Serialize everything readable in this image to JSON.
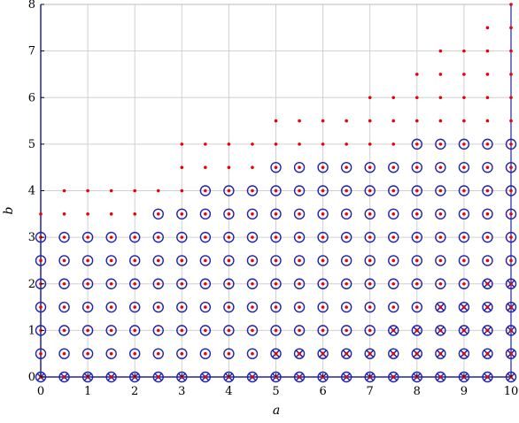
{
  "chart_data": {
    "type": "scatter",
    "title": "",
    "xlabel": "a",
    "ylabel": "b",
    "xlim": [
      0,
      10
    ],
    "ylim": [
      0,
      8
    ],
    "x_ticks": [
      "0",
      "1",
      "2",
      "3",
      "4",
      "5",
      "6",
      "7",
      "8",
      "9",
      "10"
    ],
    "y_ticks": [
      "0",
      "1",
      "2",
      "3",
      "4",
      "5",
      "6",
      "7",
      "8"
    ],
    "grid": true,
    "legend": "none",
    "colors": {
      "dot": "#e8000b",
      "circle": "#2222aa",
      "cross": "#2222aa",
      "grid": "#d0d0d0",
      "axis": "#2222aa"
    },
    "series": [
      {
        "marker": "dot",
        "note_shape": "small red dot",
        "y_max_by_x": [
          [
            0,
            3.5
          ],
          [
            0.5,
            4
          ],
          [
            1,
            4
          ],
          [
            1.5,
            4
          ],
          [
            2,
            4
          ],
          [
            2.5,
            4
          ],
          [
            3,
            5
          ],
          [
            3.5,
            5
          ],
          [
            4,
            5
          ],
          [
            4.5,
            5
          ],
          [
            5,
            5.5
          ],
          [
            5.5,
            5.5
          ],
          [
            6,
            5.5
          ],
          [
            6.5,
            5.5
          ],
          [
            7,
            6
          ],
          [
            7.5,
            6
          ],
          [
            8,
            6.5
          ],
          [
            8.5,
            7
          ],
          [
            9,
            7
          ],
          [
            9.5,
            7.5
          ],
          [
            10,
            8
          ]
        ]
      },
      {
        "marker": "circle",
        "note_shape": "open blue circle",
        "y_max_by_x": [
          [
            0,
            3
          ],
          [
            0.5,
            3
          ],
          [
            1,
            3
          ],
          [
            1.5,
            3
          ],
          [
            2,
            3
          ],
          [
            2.5,
            3.5
          ],
          [
            3,
            3.5
          ],
          [
            3.5,
            4
          ],
          [
            4,
            4
          ],
          [
            4.5,
            4
          ],
          [
            5,
            4.5
          ],
          [
            5.5,
            4.5
          ],
          [
            6,
            4.5
          ],
          [
            6.5,
            4.5
          ],
          [
            7,
            4.5
          ],
          [
            7.5,
            4.5
          ],
          [
            8,
            5
          ],
          [
            8.5,
            5
          ],
          [
            9,
            5
          ],
          [
            9.5,
            5
          ],
          [
            10,
            5
          ]
        ]
      },
      {
        "marker": "cross",
        "note_shape": "blue crossed circle",
        "y_max_by_x": [
          [
            0,
            0
          ],
          [
            0.5,
            0
          ],
          [
            1,
            0
          ],
          [
            1.5,
            0
          ],
          [
            2,
            0
          ],
          [
            2.5,
            0
          ],
          [
            3,
            0
          ],
          [
            3.5,
            0
          ],
          [
            4,
            0
          ],
          [
            4.5,
            0
          ],
          [
            5,
            0.5
          ],
          [
            5.5,
            0.5
          ],
          [
            6,
            0.5
          ],
          [
            6.5,
            0.5
          ],
          [
            7,
            0.5
          ],
          [
            7.5,
            1
          ],
          [
            8,
            1
          ],
          [
            8.5,
            1.5
          ],
          [
            9,
            1.5
          ],
          [
            9.5,
            2
          ],
          [
            10,
            2
          ]
        ]
      }
    ]
  }
}
